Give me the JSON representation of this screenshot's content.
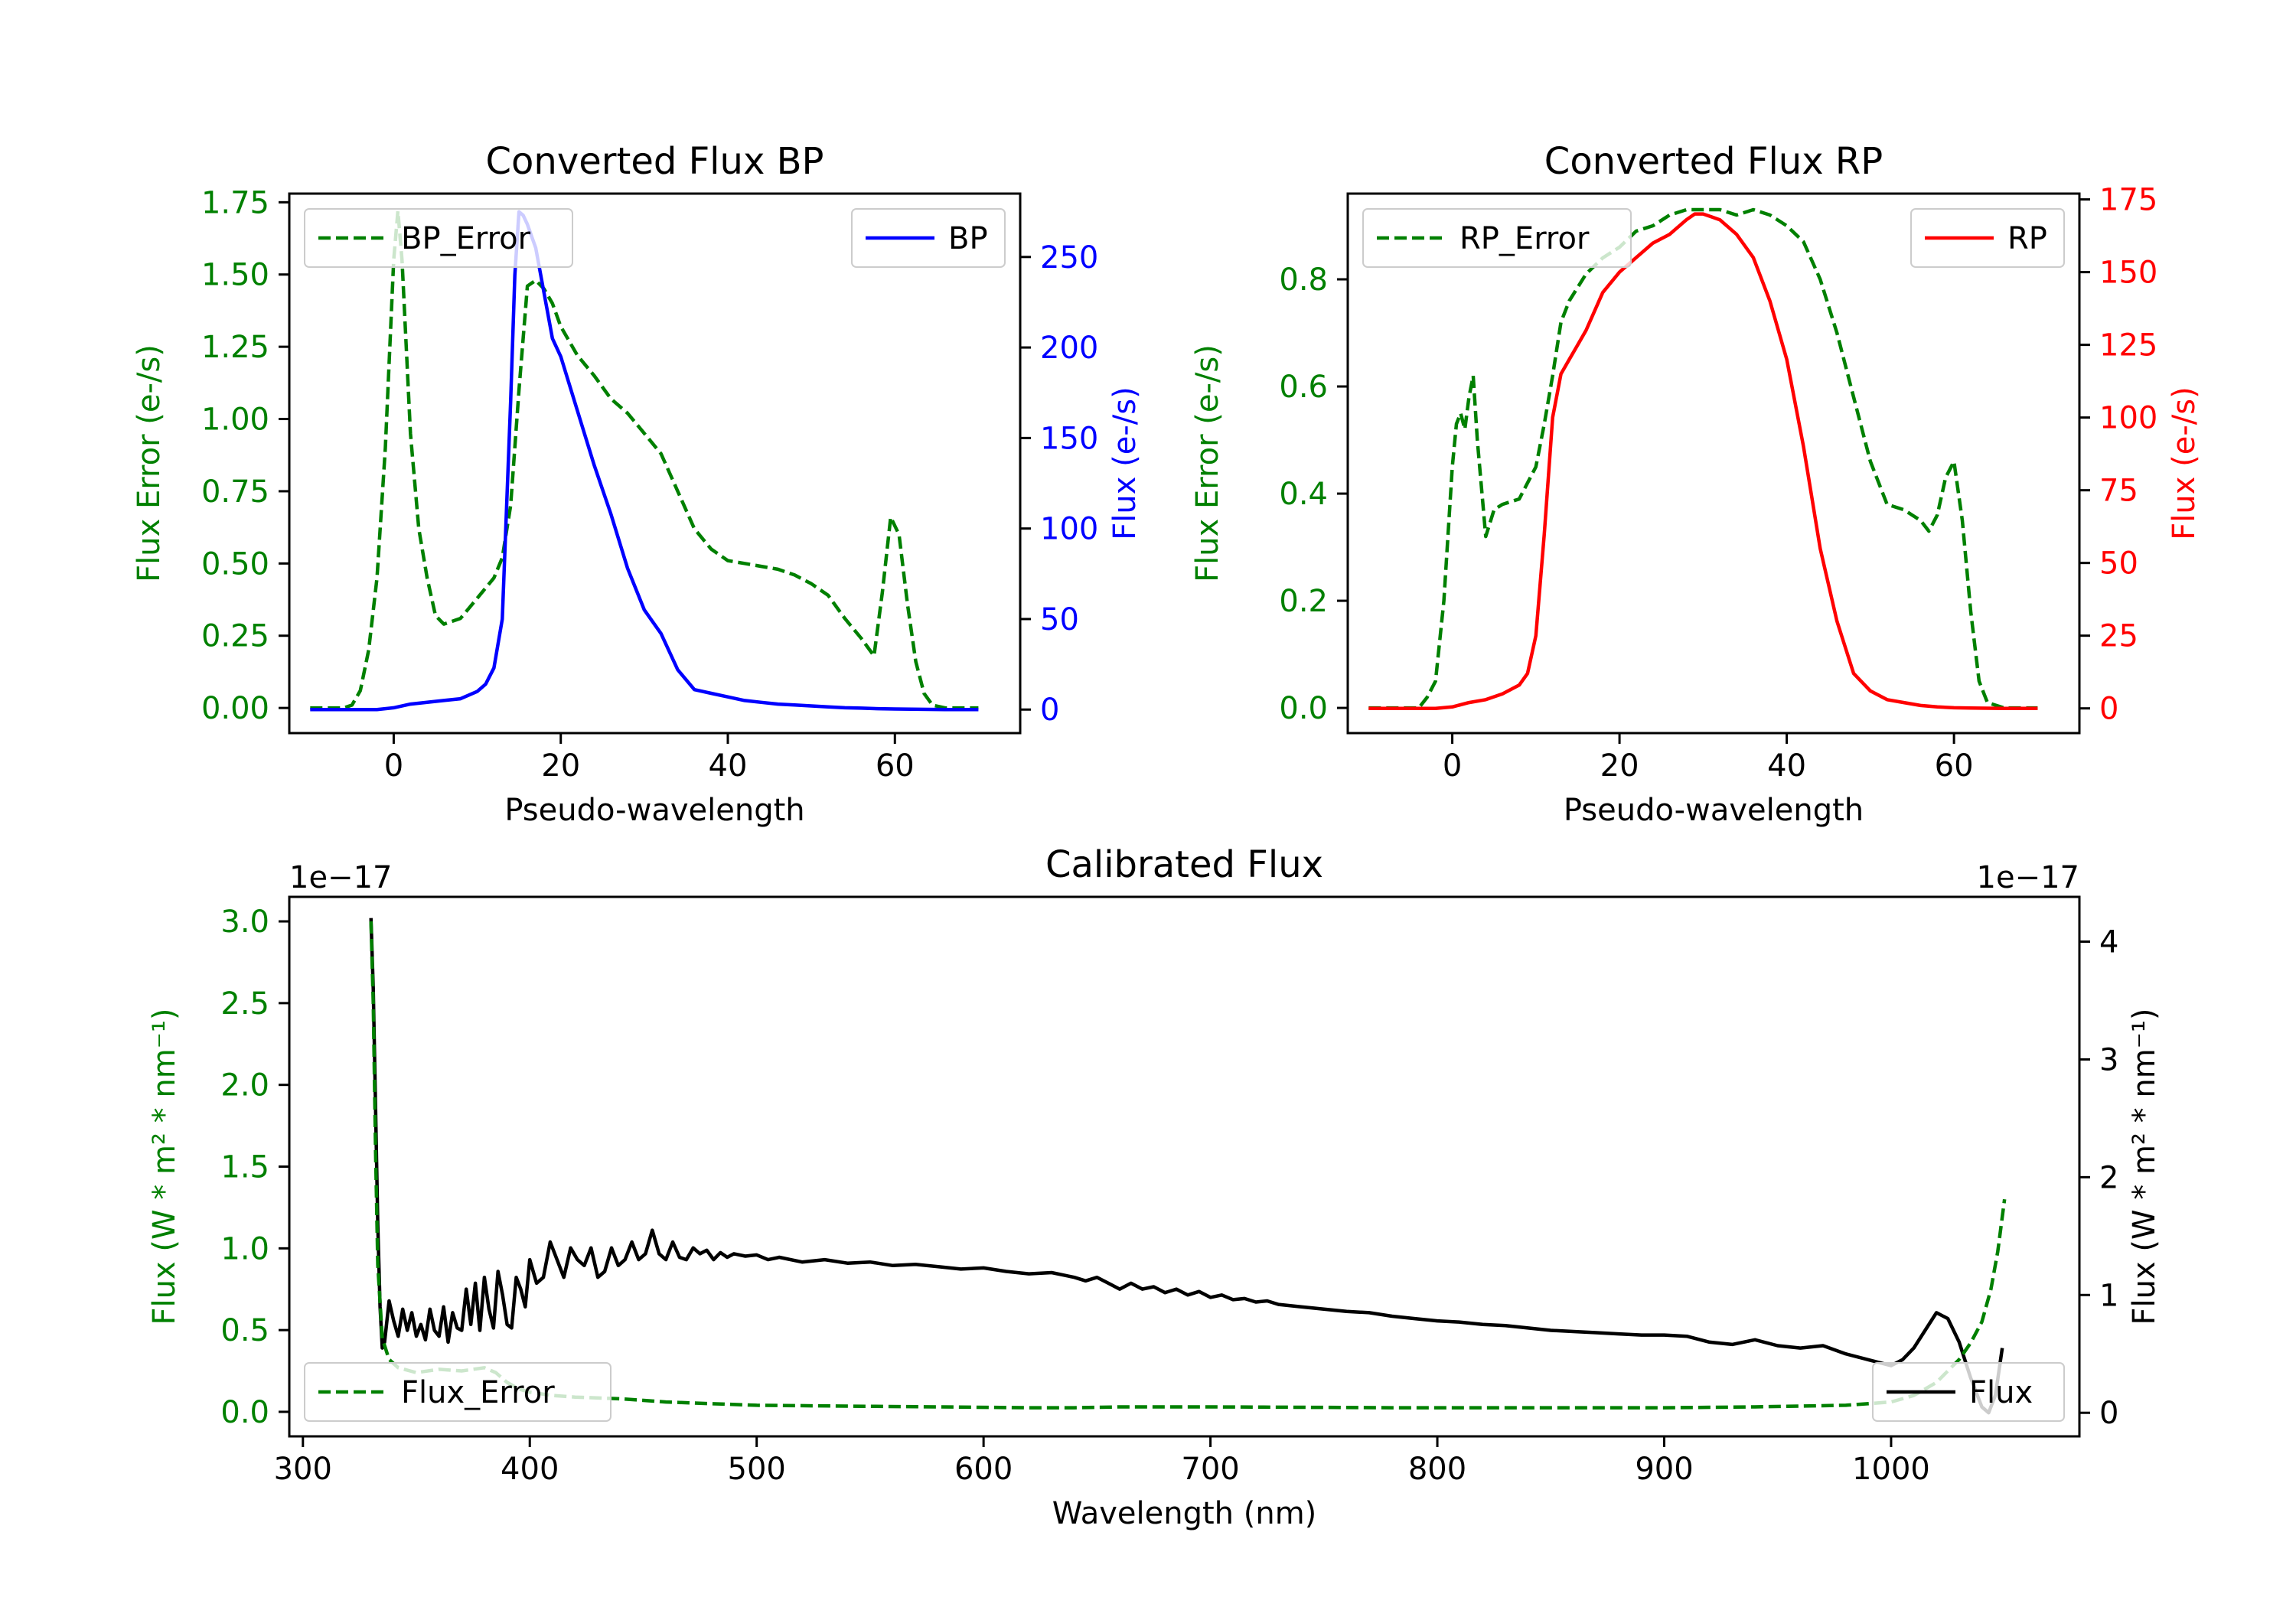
{
  "colors": {
    "bp": "#0000ff",
    "rp": "#ff0000",
    "error": "#008000",
    "flux": "#000000",
    "axis": "#000000"
  },
  "chart_data": [
    {
      "type": "line",
      "title": "Converted Flux BP",
      "xlabel": "Pseudo-wavelength",
      "xlim": [
        -12.5,
        75
      ],
      "xticks": [
        0,
        20,
        40,
        60
      ],
      "left_axis": {
        "label": "Flux Error (e-/s)",
        "color": "#008000",
        "ylim": [
          -0.087,
          1.78
        ],
        "ticks": [
          0.0,
          0.25,
          0.5,
          0.75,
          1.0,
          1.25,
          1.5,
          1.75
        ],
        "tick_labels": [
          "0.00",
          "0.25",
          "0.50",
          "0.75",
          "1.00",
          "1.25",
          "1.50",
          "1.75"
        ]
      },
      "right_axis": {
        "label": "Flux (e-/s)",
        "color": "#0000ff",
        "ylim": [
          -13,
          285
        ],
        "ticks": [
          0,
          50,
          100,
          150,
          200,
          250
        ],
        "tick_labels": [
          "0",
          "50",
          "100",
          "150",
          "200",
          "250"
        ]
      },
      "legend_left": "top-left",
      "legend_right": "top-right",
      "series": [
        {
          "name": "BP_Error",
          "axis": "left",
          "style": "dashed",
          "color": "#008000",
          "x": [
            -10,
            -6,
            -5,
            -4,
            -3,
            -2,
            -1,
            0,
            0.5,
            1,
            2,
            3,
            4,
            5,
            6,
            8,
            10,
            12,
            13,
            14,
            15,
            16,
            17,
            18,
            19,
            20,
            22,
            24,
            26,
            28,
            30,
            32,
            34,
            36,
            38,
            40,
            42,
            44,
            46,
            48,
            50,
            52,
            54,
            56,
            57.5,
            58.5,
            59.5,
            60.5,
            61.5,
            62.5,
            63.5,
            64.5,
            66,
            70
          ],
          "y": [
            0,
            0,
            0.01,
            0.06,
            0.2,
            0.45,
            0.9,
            1.55,
            1.72,
            1.55,
            0.95,
            0.62,
            0.45,
            0.32,
            0.29,
            0.31,
            0.38,
            0.45,
            0.52,
            0.7,
            1.1,
            1.46,
            1.48,
            1.45,
            1.4,
            1.32,
            1.22,
            1.15,
            1.07,
            1.02,
            0.95,
            0.88,
            0.75,
            0.62,
            0.55,
            0.51,
            0.5,
            0.49,
            0.48,
            0.46,
            0.43,
            0.39,
            0.31,
            0.24,
            0.18,
            0.4,
            0.66,
            0.6,
            0.36,
            0.16,
            0.05,
            0.01,
            0,
            0
          ]
        },
        {
          "name": "BP",
          "axis": "right",
          "style": "solid",
          "color": "#0000ff",
          "x": [
            -10,
            -6,
            -4,
            -2,
            0,
            2,
            4,
            6,
            8,
            10,
            11,
            12,
            13,
            14,
            14.5,
            15,
            15.5,
            16,
            17,
            18,
            19,
            20,
            22,
            24,
            26,
            28,
            30,
            32,
            34,
            36,
            38,
            40,
            42,
            44,
            46,
            48,
            50,
            52,
            54,
            56,
            58,
            60,
            62,
            64,
            66,
            70
          ],
          "y": [
            0,
            0,
            0,
            0,
            1,
            3,
            4,
            5,
            6,
            10,
            14,
            23,
            50,
            170,
            240,
            275,
            273,
            268,
            255,
            230,
            205,
            195,
            165,
            135,
            108,
            78,
            55,
            42,
            22,
            11,
            9,
            7,
            5,
            4,
            3,
            2.5,
            2,
            1.5,
            1,
            0.8,
            0.5,
            0.3,
            0.2,
            0.1,
            0,
            0
          ]
        }
      ]
    },
    {
      "type": "line",
      "title": "Converted Flux RP",
      "xlabel": "Pseudo-wavelength",
      "xlim": [
        -12.5,
        75
      ],
      "xticks": [
        0,
        20,
        40,
        60
      ],
      "left_axis": {
        "label": "Flux Error (e-/s)",
        "color": "#008000",
        "ylim": [
          -0.047,
          0.96
        ],
        "ticks": [
          0.0,
          0.2,
          0.4,
          0.6,
          0.8
        ],
        "tick_labels": [
          "0.0",
          "0.2",
          "0.4",
          "0.6",
          "0.8"
        ]
      },
      "right_axis": {
        "label": "Flux (e-/s)",
        "color": "#ff0000",
        "ylim": [
          -8.5,
          177
        ],
        "ticks": [
          0,
          25,
          50,
          75,
          100,
          125,
          150,
          175
        ],
        "tick_labels": [
          "0",
          "25",
          "50",
          "75",
          "100",
          "125",
          "150",
          "175"
        ]
      },
      "legend_left": "top-left",
      "legend_right": "top-right",
      "series": [
        {
          "name": "RP_Error",
          "axis": "left",
          "style": "dashed",
          "color": "#008000",
          "x": [
            -10,
            -5,
            -4,
            -3,
            -2,
            -1,
            0,
            0.5,
            1,
            1.5,
            2,
            2.5,
            3,
            4,
            5,
            6,
            8,
            10,
            11,
            12,
            13,
            14,
            16,
            18,
            20,
            22,
            24,
            26,
            28,
            30,
            32,
            34,
            36,
            38,
            40,
            42,
            44,
            46,
            48,
            50,
            52,
            54,
            55,
            56,
            57,
            58,
            59,
            60,
            61,
            62,
            63,
            64,
            66,
            70
          ],
          "y": [
            0,
            0,
            0,
            0.02,
            0.05,
            0.2,
            0.45,
            0.53,
            0.55,
            0.52,
            0.58,
            0.62,
            0.5,
            0.32,
            0.37,
            0.38,
            0.39,
            0.45,
            0.53,
            0.62,
            0.72,
            0.76,
            0.81,
            0.84,
            0.86,
            0.89,
            0.9,
            0.92,
            0.93,
            0.93,
            0.93,
            0.92,
            0.93,
            0.92,
            0.9,
            0.87,
            0.8,
            0.7,
            0.58,
            0.46,
            0.38,
            0.37,
            0.36,
            0.35,
            0.33,
            0.36,
            0.43,
            0.46,
            0.35,
            0.18,
            0.05,
            0.01,
            0,
            0
          ]
        },
        {
          "name": "RP",
          "axis": "right",
          "style": "solid",
          "color": "#ff0000",
          "x": [
            -10,
            -6,
            -4,
            -2,
            0,
            2,
            4,
            6,
            8,
            9,
            10,
            11,
            12,
            13,
            14,
            15,
            16,
            18,
            20,
            22,
            24,
            26,
            28,
            29,
            30,
            31,
            32,
            34,
            36,
            38,
            40,
            42,
            44,
            46,
            48,
            50,
            52,
            54,
            56,
            58,
            60,
            62,
            66,
            70
          ],
          "y": [
            0,
            0,
            0,
            0,
            0.5,
            2,
            3,
            5,
            8,
            12,
            25,
            60,
            100,
            115,
            120,
            125,
            130,
            143,
            150,
            155,
            160,
            163,
            168,
            170,
            170,
            169,
            168,
            163,
            155,
            140,
            120,
            90,
            55,
            30,
            12,
            6,
            3,
            2,
            1,
            0.5,
            0.2,
            0.1,
            0,
            0
          ]
        }
      ]
    },
    {
      "type": "line",
      "title": "Calibrated Flux",
      "xlabel": "Wavelength (nm)",
      "xlim": [
        294,
        1083
      ],
      "xticks": [
        300,
        400,
        500,
        600,
        700,
        800,
        900,
        1000
      ],
      "left_axis": {
        "label": "Flux (W * m² * nm⁻¹)",
        "color": "#008000",
        "ylim": [
          -0.15,
          3.15
        ],
        "ticks": [
          0.0,
          0.5,
          1.0,
          1.5,
          2.0,
          2.5,
          3.0
        ],
        "tick_labels": [
          "0.0",
          "0.5",
          "1.0",
          "1.5",
          "2.0",
          "2.5",
          "3.0"
        ],
        "scale_label": "1e−17"
      },
      "right_axis": {
        "label": "Flux (W * m² * nm⁻¹)",
        "color": "#000000",
        "ylim": [
          -0.2,
          4.38
        ],
        "ticks": [
          0,
          1,
          2,
          3,
          4
        ],
        "tick_labels": [
          "0",
          "1",
          "2",
          "3",
          "4"
        ],
        "scale_label": "1e−17"
      },
      "legend_left": "bottom-left",
      "legend_right": "bottom-right",
      "series": [
        {
          "name": "Flux",
          "axis": "right",
          "style": "solid",
          "color": "#000000",
          "x": [
            330,
            331,
            332,
            333,
            334,
            335,
            336,
            338,
            340,
            342,
            344,
            346,
            348,
            350,
            352,
            354,
            356,
            358,
            360,
            362,
            364,
            366,
            368,
            370,
            372,
            374,
            376,
            378,
            380,
            382,
            384,
            386,
            388,
            390,
            392,
            394,
            396,
            398,
            400,
            403,
            406,
            409,
            412,
            415,
            418,
            421,
            424,
            427,
            430,
            433,
            436,
            439,
            442,
            445,
            448,
            451,
            454,
            457,
            460,
            463,
            466,
            469,
            472,
            475,
            478,
            481,
            484,
            487,
            490,
            495,
            500,
            505,
            510,
            520,
            530,
            540,
            550,
            560,
            570,
            580,
            590,
            600,
            610,
            620,
            630,
            640,
            645,
            650,
            655,
            660,
            665,
            670,
            675,
            680,
            685,
            690,
            695,
            700,
            705,
            710,
            715,
            720,
            725,
            730,
            740,
            750,
            760,
            770,
            780,
            790,
            800,
            810,
            820,
            830,
            840,
            850,
            860,
            870,
            880,
            890,
            900,
            910,
            920,
            930,
            940,
            950,
            960,
            970,
            980,
            990,
            1000,
            1005,
            1010,
            1015,
            1020,
            1025,
            1030,
            1035,
            1040,
            1043,
            1046,
            1049
          ],
          "y": [
            4.2,
            3.6,
            2.6,
            1.6,
            0.9,
            0.55,
            0.6,
            0.95,
            0.78,
            0.65,
            0.88,
            0.7,
            0.85,
            0.65,
            0.75,
            0.62,
            0.88,
            0.7,
            0.65,
            0.9,
            0.6,
            0.85,
            0.72,
            0.7,
            1.05,
            0.75,
            1.1,
            0.7,
            1.15,
            0.88,
            0.72,
            1.2,
            1.0,
            0.75,
            0.72,
            1.15,
            1.05,
            0.9,
            1.3,
            1.1,
            1.15,
            1.45,
            1.3,
            1.15,
            1.4,
            1.3,
            1.25,
            1.4,
            1.15,
            1.2,
            1.4,
            1.25,
            1.3,
            1.45,
            1.3,
            1.35,
            1.55,
            1.35,
            1.3,
            1.45,
            1.32,
            1.3,
            1.4,
            1.35,
            1.38,
            1.3,
            1.36,
            1.32,
            1.35,
            1.33,
            1.34,
            1.3,
            1.32,
            1.28,
            1.3,
            1.27,
            1.28,
            1.25,
            1.26,
            1.24,
            1.22,
            1.23,
            1.2,
            1.18,
            1.19,
            1.15,
            1.12,
            1.15,
            1.1,
            1.05,
            1.1,
            1.05,
            1.07,
            1.02,
            1.05,
            1.0,
            1.03,
            0.98,
            1.0,
            0.96,
            0.97,
            0.94,
            0.95,
            0.92,
            0.9,
            0.88,
            0.86,
            0.85,
            0.82,
            0.8,
            0.78,
            0.77,
            0.75,
            0.74,
            0.72,
            0.7,
            0.69,
            0.68,
            0.67,
            0.66,
            0.66,
            0.65,
            0.6,
            0.58,
            0.62,
            0.57,
            0.55,
            0.57,
            0.5,
            0.45,
            0.4,
            0.45,
            0.55,
            0.7,
            0.85,
            0.8,
            0.6,
            0.3,
            0.05,
            0.0,
            0.15,
            0.55
          ]
        },
        {
          "name": "Flux_Error",
          "axis": "left",
          "style": "dashed",
          "color": "#008000",
          "x": [
            330,
            331,
            332,
            333,
            335,
            338,
            342,
            350,
            360,
            370,
            380,
            385,
            390,
            395,
            400,
            410,
            420,
            440,
            460,
            480,
            500,
            540,
            580,
            620,
            640,
            660,
            700,
            740,
            780,
            820,
            860,
            900,
            940,
            980,
            1000,
            1010,
            1020,
            1025,
            1030,
            1035,
            1040,
            1044,
            1047,
            1050
          ],
          "y": [
            3.0,
            2.5,
            1.6,
            0.9,
            0.45,
            0.32,
            0.27,
            0.24,
            0.26,
            0.25,
            0.27,
            0.24,
            0.18,
            0.14,
            0.12,
            0.1,
            0.09,
            0.08,
            0.06,
            0.05,
            0.04,
            0.035,
            0.03,
            0.025,
            0.025,
            0.03,
            0.03,
            0.028,
            0.025,
            0.025,
            0.025,
            0.025,
            0.03,
            0.04,
            0.06,
            0.1,
            0.18,
            0.25,
            0.32,
            0.42,
            0.55,
            0.75,
            0.98,
            1.3
          ]
        }
      ]
    }
  ]
}
